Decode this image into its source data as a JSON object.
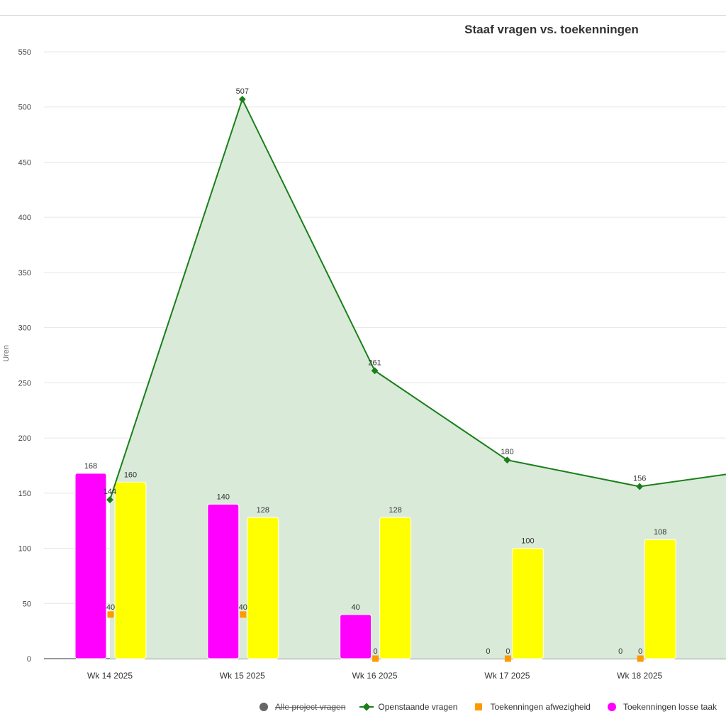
{
  "chart_data": {
    "type": "bar",
    "title": "Staaf vragen vs. toekenningen",
    "ylabel": "Uren",
    "xlabel": "",
    "ylim": [
      0,
      550
    ],
    "yticks": [
      0,
      50,
      100,
      150,
      200,
      250,
      300,
      350,
      400,
      450,
      500,
      550
    ],
    "categories": [
      "Wk 14 2025",
      "Wk 15 2025",
      "Wk 16 2025",
      "Wk 17 2025",
      "Wk 18 2025"
    ],
    "series": [
      {
        "name": "Toekenningen losse taak",
        "kind": "bar",
        "color": "#ff00ff",
        "values": [
          168,
          140,
          40,
          0,
          0
        ]
      },
      {
        "name": "",
        "kind": "bar",
        "color": "#ffff00",
        "values": [
          160,
          128,
          128,
          100,
          108
        ]
      },
      {
        "name": "Toekenningen afwezigheid",
        "kind": "marker",
        "color": "#ff9900",
        "values": [
          40,
          40,
          0,
          0,
          0
        ]
      },
      {
        "name": "Openstaande vragen",
        "kind": "area-line",
        "color": "#1a7f1a",
        "fill": "#d9ead9",
        "values": [
          144,
          507,
          261,
          180,
          156
        ],
        "continues_to": 167
      }
    ],
    "grid": true
  },
  "legend": {
    "items": [
      {
        "label": "Alle project vragen",
        "icon": "circle",
        "color": "#666666",
        "hidden": true
      },
      {
        "label": "Openstaande vragen",
        "icon": "line-diamond",
        "color": "#1a7f1a",
        "hidden": false
      },
      {
        "label": "Toekenningen afwezigheid",
        "icon": "square",
        "color": "#ff9900",
        "hidden": false
      },
      {
        "label": "Toekenningen losse taak",
        "icon": "circle",
        "color": "#ff00ff",
        "hidden": false
      }
    ]
  }
}
